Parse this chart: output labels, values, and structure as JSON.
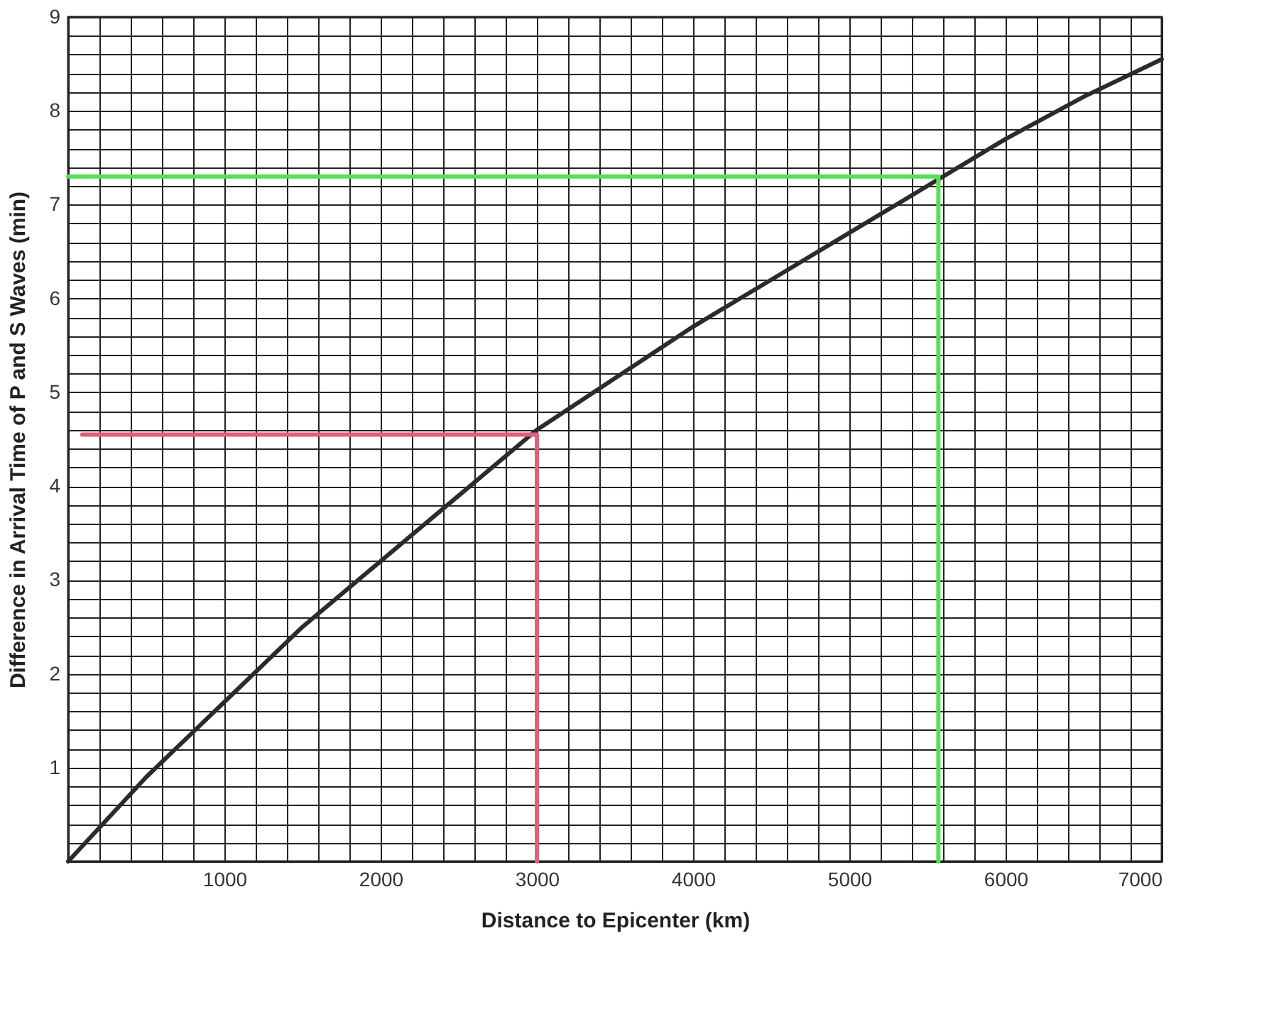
{
  "chart_data": {
    "type": "line",
    "xlabel": "Distance to Epicenter (km)",
    "ylabel": "Difference in Arrival Time of P and S Waves (min)",
    "series": [
      {
        "color": "#2b2b2b",
        "x": [
          0,
          500,
          1000,
          1500,
          2000,
          2500,
          3000,
          3500,
          4000,
          4500,
          5000,
          5500,
          6000,
          6500,
          7000
        ],
        "values": [
          0,
          0.9,
          1.7,
          2.5,
          3.2,
          3.9,
          4.6,
          5.15,
          5.7,
          6.2,
          6.7,
          7.2,
          7.7,
          8.15,
          8.55
        ]
      },
      {
        "color": "#e0607a",
        "x": [
          90,
          3000,
          3000
        ],
        "values": [
          4.55,
          4.55,
          0
        ]
      },
      {
        "color": "#55e055",
        "x": [
          0,
          5570,
          5570
        ],
        "values": [
          7.3,
          7.3,
          0
        ]
      }
    ],
    "xlim": [
      0,
      7000
    ],
    "ylim": [
      0,
      9
    ],
    "xticks": [
      {
        "value": 0,
        "label": null
      },
      {
        "value": 200,
        "label": null
      },
      {
        "value": 400,
        "label": null
      },
      {
        "value": 600,
        "label": null
      },
      {
        "value": 800,
        "label": null
      },
      1000,
      {
        "value": 1200,
        "label": null
      },
      {
        "value": 1400,
        "label": null
      },
      {
        "value": 1600,
        "label": null
      },
      {
        "value": 1800,
        "label": null
      },
      2000,
      {
        "value": 2200,
        "label": null
      },
      {
        "value": 2400,
        "label": null
      },
      {
        "value": 2600,
        "label": null
      },
      {
        "value": 2800,
        "label": null
      },
      3000,
      {
        "value": 3200,
        "label": null
      },
      {
        "value": 3400,
        "label": null
      },
      {
        "value": 3600,
        "label": null
      },
      {
        "value": 3800,
        "label": null
      },
      4000,
      {
        "value": 4200,
        "label": null
      },
      {
        "value": 4400,
        "label": null
      },
      {
        "value": 4600,
        "label": null
      },
      {
        "value": 4800,
        "label": null
      },
      5000,
      {
        "value": 5200,
        "label": null
      },
      {
        "value": 5400,
        "label": null
      },
      {
        "value": 5600,
        "label": null
      },
      {
        "value": 5800,
        "label": null
      },
      6000,
      {
        "value": 6200,
        "label": null
      },
      {
        "value": 6400,
        "label": null
      },
      {
        "value": 6600,
        "label": null
      },
      {
        "value": 6800,
        "label": null
      },
      7000
    ],
    "yticks": [
      {
        "value": 0,
        "label": null
      },
      {
        "value": 0.2,
        "label": null
      },
      {
        "value": 0.4,
        "label": null
      },
      {
        "value": 0.6,
        "label": null
      },
      {
        "value": 0.8,
        "label": null
      },
      1,
      {
        "value": 1.2,
        "label": null
      },
      {
        "value": 1.4,
        "label": null
      },
      {
        "value": 1.6,
        "label": null
      },
      {
        "value": 1.8,
        "label": null
      },
      2,
      {
        "value": 2.2,
        "label": null
      },
      {
        "value": 2.4,
        "label": null
      },
      {
        "value": 2.6,
        "label": null
      },
      {
        "value": 2.8,
        "label": null
      },
      3,
      {
        "value": 3.2,
        "label": null
      },
      {
        "value": 3.4,
        "label": null
      },
      {
        "value": 3.6,
        "label": null
      },
      {
        "value": 3.8,
        "label": null
      },
      4,
      {
        "value": 4.2,
        "label": null
      },
      {
        "value": 4.4,
        "label": null
      },
      {
        "value": 4.6,
        "label": null
      },
      {
        "value": 4.8,
        "label": null
      },
      5,
      {
        "value": 5.2,
        "label": null
      },
      {
        "value": 5.4,
        "label": null
      },
      {
        "value": 5.6,
        "label": null
      },
      {
        "value": 5.8,
        "label": null
      },
      6,
      {
        "value": 6.2,
        "label": null
      },
      {
        "value": 6.4,
        "label": null
      },
      {
        "value": 6.6,
        "label": null
      },
      {
        "value": 6.8,
        "label": null
      },
      7,
      {
        "value": 7.2,
        "label": null
      },
      {
        "value": 7.4,
        "label": null
      },
      {
        "value": 7.6,
        "label": null
      },
      {
        "value": 7.8,
        "label": null
      },
      8,
      {
        "value": 8.2,
        "label": null
      },
      {
        "value": 8.4,
        "label": null
      },
      {
        "value": 8.6,
        "label": null
      },
      {
        "value": 8.8,
        "label": null
      },
      9
    ],
    "grid": true,
    "marker": "none",
    "line_style": "solid"
  }
}
